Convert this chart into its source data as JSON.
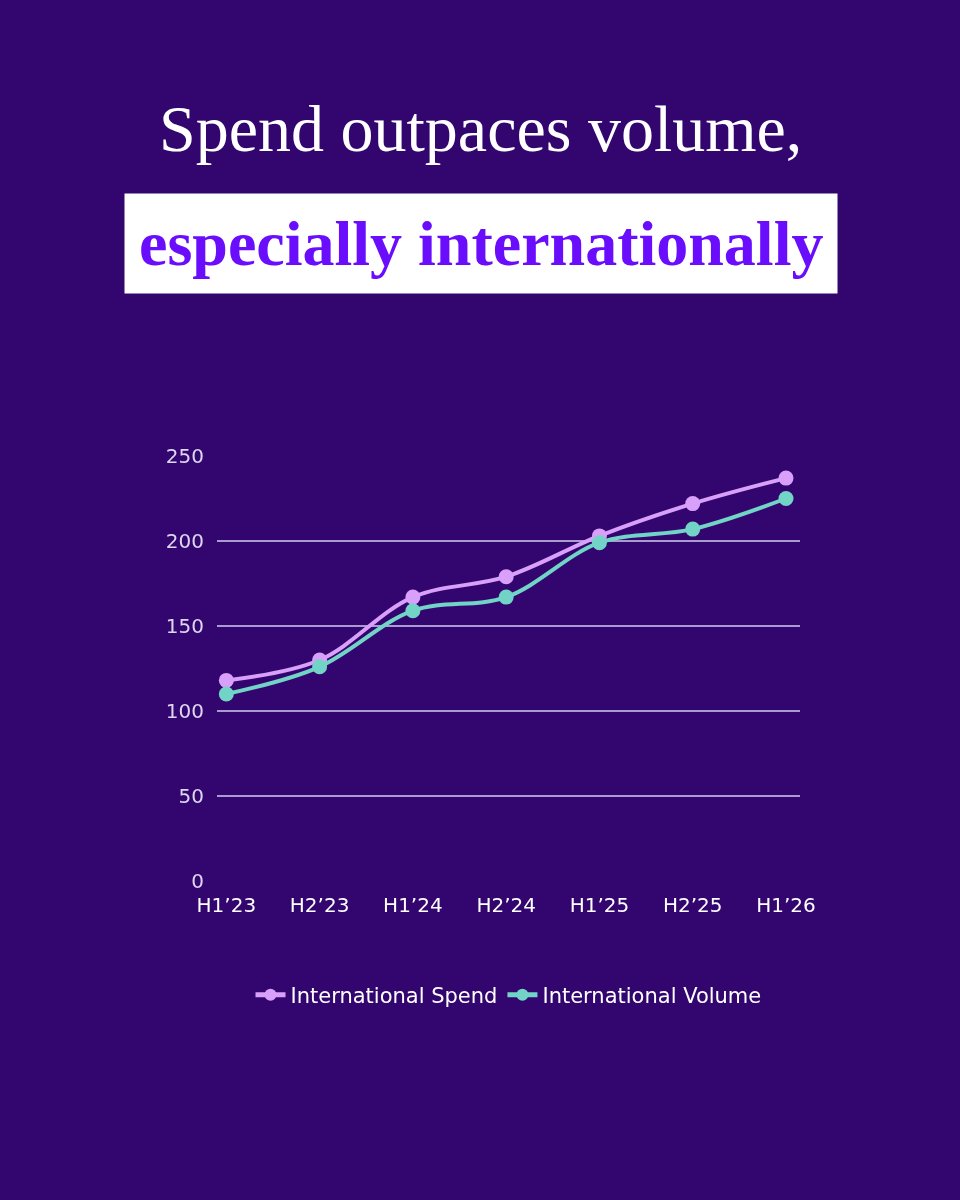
{
  "chart_data": {
    "type": "line",
    "title": "Spend outpaces volume,",
    "subtitle": "especially internationally",
    "categories": [
      "H1’23",
      "H2’23",
      "H1’24",
      "H2’24",
      "H1’25",
      "H2’25",
      "H1’26"
    ],
    "series": [
      {
        "name": "International Spend",
        "color": "#d8a0fa",
        "values": [
          118,
          130,
          167,
          179,
          203,
          222,
          237
        ]
      },
      {
        "name": "International Volume",
        "color": "#72d4c6",
        "values": [
          110,
          126,
          159,
          167,
          199,
          207,
          225
        ]
      }
    ],
    "ylim": [
      0,
      250
    ],
    "yticks": [
      0,
      50,
      100,
      150,
      200,
      250
    ],
    "grid": "y",
    "legend": "bottom",
    "marker": "circle",
    "line_style": "solid"
  }
}
